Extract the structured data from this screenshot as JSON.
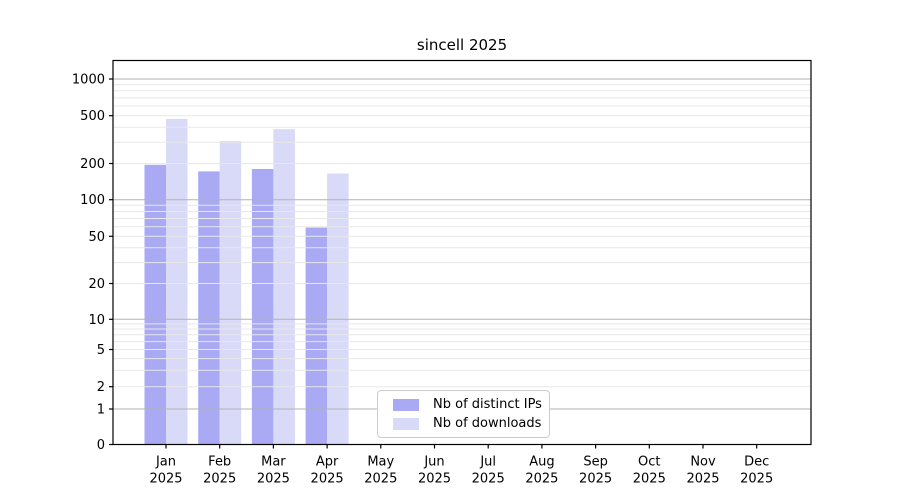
{
  "chart_data": {
    "type": "bar",
    "title": "sincell 2025",
    "categories": [
      "Jan",
      "Feb",
      "Mar",
      "Apr",
      "May",
      "Jun",
      "Jul",
      "Aug",
      "Sep",
      "Oct",
      "Nov",
      "Dec"
    ],
    "category_year": "2025",
    "series": [
      {
        "name": "Nb of distinct IPs",
        "color": "#a9a9f4",
        "values": [
          195,
          172,
          180,
          59,
          null,
          null,
          null,
          null,
          null,
          null,
          null,
          null
        ]
      },
      {
        "name": "Nb of downloads",
        "color": "#d9d9f8",
        "values": [
          470,
          308,
          386,
          165,
          null,
          null,
          null,
          null,
          null,
          null,
          null,
          null
        ]
      }
    ],
    "yticks": [
      0,
      1,
      2,
      5,
      10,
      20,
      50,
      100,
      200,
      500,
      1000
    ],
    "ylim": [
      0,
      1000
    ],
    "yscale": "symlog",
    "grid": "on",
    "grid_major_values": [
      1,
      10,
      100,
      1000
    ],
    "legend_position": "lower center-right inside plot",
    "colors": {
      "background": "#ffffff",
      "axis": "#000000",
      "grid_major": "#b3b3b3",
      "grid_minor": "#e8e8e8",
      "legend_border": "#cccccc",
      "text": "#000000"
    }
  }
}
